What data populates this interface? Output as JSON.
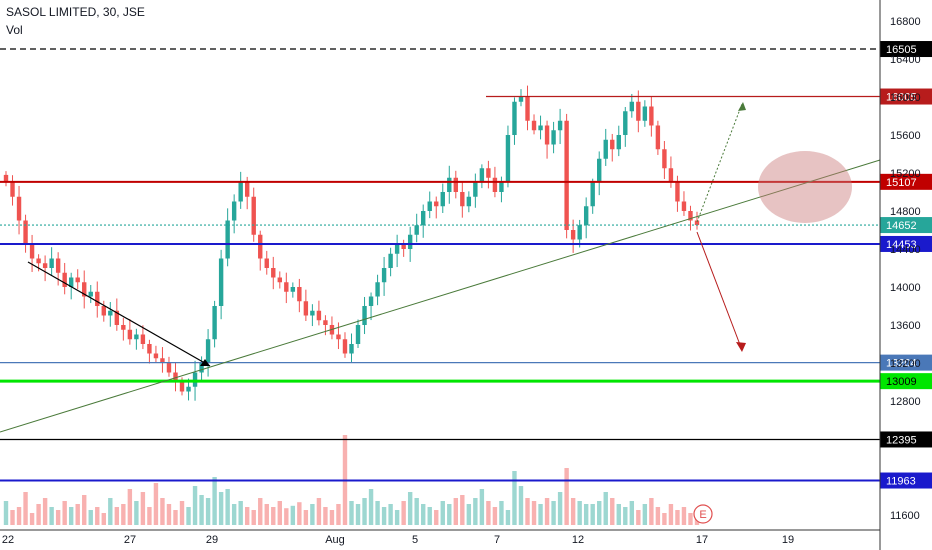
{
  "header": {
    "title": "SASOL LIMITED, 30, JSE",
    "volume_label": "Vol"
  },
  "colors": {
    "up": "#26a69a",
    "down": "#ef5350",
    "red_level": "#b71c1c",
    "blue_level": "#1a1acc",
    "green_level": "#00e600",
    "dark_red_level": "#c00000",
    "light_blue_level": "#4a78b8",
    "black_level": "#000000",
    "trendline": "#4a7a3a",
    "current": "#26a69a"
  },
  "chart_data": {
    "type": "candlestick",
    "symbol": "SASOL LIMITED",
    "interval": "30",
    "exchange": "JSE",
    "y_axis": {
      "ticks": [
        16800,
        16400,
        16000,
        15600,
        15200,
        14800,
        14400,
        14000,
        13600,
        13200,
        12800,
        11600
      ],
      "ylim": [
        11500,
        17000
      ]
    },
    "x_axis": {
      "ticks": [
        "22",
        "27",
        "29",
        "Aug",
        "5",
        "7",
        "12",
        "17",
        "19"
      ]
    },
    "levels": [
      {
        "label": "16505",
        "value": 16505,
        "style": "dashed",
        "color_key": "black_level"
      },
      {
        "label": "16005",
        "value": 16005,
        "style": "solid",
        "color_key": "red_level"
      },
      {
        "label": "15107",
        "value": 15107,
        "style": "solid",
        "color_key": "dark_red_level"
      },
      {
        "label": "14652",
        "value": 14652,
        "style": "dotted",
        "color_key": "current"
      },
      {
        "label": "14453",
        "value": 14453,
        "style": "solid",
        "color_key": "blue_level"
      },
      {
        "label": "13204",
        "value": 13204,
        "style": "solid",
        "color_key": "light_blue_level"
      },
      {
        "label": "13009",
        "value": 13009,
        "style": "solid",
        "color_key": "green_level"
      },
      {
        "label": "12395",
        "value": 12395,
        "style": "solid",
        "color_key": "black_level"
      },
      {
        "label": "11963",
        "value": 11963,
        "style": "solid",
        "color_key": "blue_level"
      }
    ],
    "last_price": 14652,
    "close_series": [
      15100,
      14950,
      14700,
      14450,
      14300,
      14250,
      14200,
      14300,
      14150,
      14000,
      14100,
      14050,
      13900,
      13950,
      13800,
      13700,
      13750,
      13600,
      13550,
      13450,
      13500,
      13400,
      13300,
      13250,
      13200,
      13100,
      13000,
      12900,
      12950,
      13100,
      13200,
      13450,
      13800,
      14300,
      14700,
      14900,
      15100,
      14950,
      14550,
      14300,
      14200,
      14100,
      14050,
      13950,
      14000,
      13850,
      13700,
      13750,
      13650,
      13600,
      13500,
      13450,
      13300,
      13400,
      13600,
      13800,
      13900,
      14050,
      14200,
      14350,
      14450,
      14400,
      14550,
      14650,
      14800,
      14900,
      14850,
      15000,
      15150,
      15000,
      14850,
      14950,
      15100,
      15250,
      15150,
      15000,
      15100,
      15600,
      15950,
      16000,
      15750,
      15650,
      15700,
      15500,
      15650,
      15750,
      14600,
      14500,
      14650,
      14850,
      15100,
      15350,
      15550,
      15450,
      15600,
      15850,
      15950,
      15750,
      15900,
      15700,
      15450,
      15250,
      15100,
      14900,
      14800,
      14700,
      14652
    ],
    "volume_series": [
      40,
      25,
      30,
      55,
      20,
      35,
      45,
      30,
      25,
      40,
      30,
      35,
      50,
      25,
      30,
      20,
      45,
      30,
      35,
      60,
      40,
      55,
      30,
      70,
      45,
      35,
      25,
      40,
      30,
      65,
      50,
      45,
      80,
      55,
      60,
      35,
      40,
      30,
      25,
      45,
      35,
      30,
      40,
      28,
      32,
      38,
      25,
      35,
      45,
      30,
      25,
      35,
      150,
      40,
      35,
      45,
      60,
      40,
      30,
      35,
      25,
      40,
      55,
      45,
      35,
      30,
      25,
      40,
      35,
      45,
      50,
      35,
      45,
      60,
      40,
      30,
      40,
      25,
      90,
      65,
      45,
      40,
      35,
      45,
      40,
      55,
      95,
      45,
      40,
      35,
      35,
      40,
      55,
      45,
      35,
      30,
      40,
      25,
      35,
      45,
      30,
      20,
      35,
      25,
      30,
      20,
      25
    ],
    "annotations": {
      "earnings_marker": "E"
    }
  }
}
